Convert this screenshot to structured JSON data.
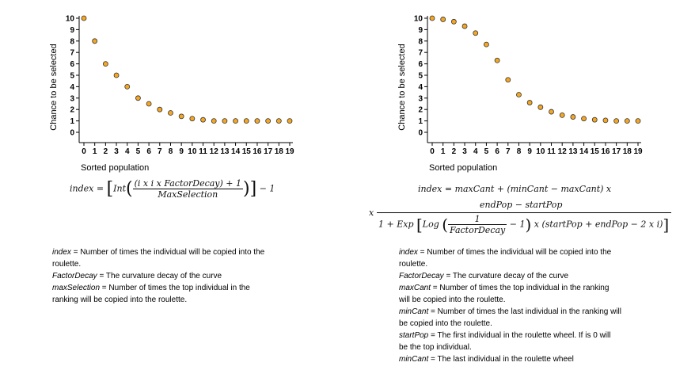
{
  "chart_data": [
    {
      "type": "scatter",
      "title": "",
      "xlabel": "Sorted population",
      "ylabel": "Chance to be selected",
      "x": [
        0,
        1,
        2,
        3,
        4,
        5,
        6,
        7,
        8,
        9,
        10,
        11,
        12,
        13,
        14,
        15,
        16,
        17,
        18,
        19
      ],
      "y": [
        10,
        8,
        6,
        5,
        4,
        3,
        2.5,
        2,
        1.7,
        1.4,
        1.2,
        1.1,
        1,
        1,
        1,
        1,
        1,
        1,
        1,
        1
      ],
      "xlim": [
        0,
        19
      ],
      "ylim": [
        0,
        10
      ],
      "xticks": [
        0,
        1,
        2,
        3,
        4,
        5,
        6,
        7,
        8,
        9,
        10,
        11,
        12,
        13,
        14,
        15,
        16,
        17,
        18,
        19
      ],
      "yticks": [
        10,
        9,
        8,
        7,
        6,
        5,
        4,
        3,
        2,
        1,
        0
      ],
      "marker_color": "#F5A623",
      "marker_edge": "#333333",
      "grid": false
    },
    {
      "type": "scatter",
      "title": "",
      "xlabel": "Sorted population",
      "ylabel": "Chance to be selected",
      "x": [
        0,
        1,
        2,
        3,
        4,
        5,
        6,
        7,
        8,
        9,
        10,
        11,
        12,
        13,
        14,
        15,
        16,
        17,
        18,
        19
      ],
      "y": [
        10,
        9.9,
        9.7,
        9.3,
        8.7,
        7.7,
        6.3,
        4.6,
        3.3,
        2.6,
        2.2,
        1.8,
        1.5,
        1.35,
        1.2,
        1.1,
        1.05,
        1,
        1,
        1
      ],
      "xlim": [
        0,
        19
      ],
      "ylim": [
        0,
        10
      ],
      "xticks": [
        0,
        1,
        2,
        3,
        4,
        5,
        6,
        7,
        8,
        9,
        10,
        11,
        12,
        13,
        14,
        15,
        16,
        17,
        18,
        19
      ],
      "yticks": [
        10,
        9,
        8,
        7,
        6,
        5,
        4,
        3,
        2,
        1,
        0
      ],
      "marker_color": "#F5A623",
      "marker_edge": "#333333",
      "grid": false
    }
  ],
  "left_formula": {
    "lhs": "index =",
    "int": "Int",
    "numerator": "(i x i x FactorDecay) + 1",
    "denominator": "MaxSelection",
    "tail": "− 1"
  },
  "right_formula": {
    "line1": "index = maxCant + (minCant − maxCant) x",
    "numerator": "endPop − startPop",
    "x_prefix": "x",
    "den_a": "1 + Exp",
    "den_log": "Log",
    "inner_num": "1",
    "inner_den": "FactorDecay",
    "den_mid": "− 1",
    "den_tail": "x (startPop + endPop − 2 x i)"
  },
  "left_legend": [
    {
      "term": "index",
      "text": " = Number of times the individual will be copied into the"
    },
    {
      "term": "",
      "text": "roulette."
    },
    {
      "term": "FactorDecay",
      "text": " = The curvature decay of the curve"
    },
    {
      "term": "maxSelection",
      "text": " = Number of times the top individual in the"
    },
    {
      "term": "",
      "text": "ranking will be copied into the roulette."
    }
  ],
  "right_legend": [
    {
      "term": "index",
      "text": " = Number of times the individual will be copied into the"
    },
    {
      "term": "",
      "text": "roulette."
    },
    {
      "term": "FactorDecay",
      "text": " = The curvature decay of the curve"
    },
    {
      "term": "maxCant",
      "text": " = Number of times the top individual in the ranking"
    },
    {
      "term": "",
      "text": "will be copied into the roulette."
    },
    {
      "term": "minCant",
      "text": " = Number of times the last individual in the ranking will"
    },
    {
      "term": "",
      "text": "be copied into the roulette."
    },
    {
      "term": "startPop",
      "text": " = The first individual in the roulette wheel. If is 0 will"
    },
    {
      "term": "",
      "text": "be the top individual."
    },
    {
      "term": "minCant",
      "text": " = The last individual in the roulette wheel"
    }
  ]
}
